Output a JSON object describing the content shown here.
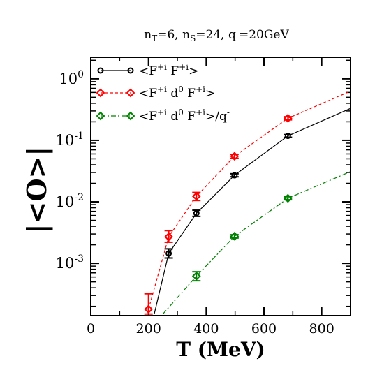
{
  "chart_data": {
    "type": "line",
    "title": "n_T=6, n_S=24, q̄=20GeV",
    "title_parts": {
      "nT_base": "n",
      "nT_sub": "T",
      "nT_val": "=6, ",
      "nS_base": "n",
      "nS_sub": "S",
      "nS_val": "=24, ",
      "q_base": "q",
      "q_sup": "-",
      "q_val": "=20GeV"
    },
    "xlabel": "T (MeV)",
    "ylabel": "|<O>|",
    "xlim": [
      0,
      900
    ],
    "ylim_log10": [
      -3.85,
      0.35
    ],
    "y_scale": "log",
    "x_ticks": [
      {
        "v": 0,
        "label": "0"
      },
      {
        "v": 200,
        "label": "200"
      },
      {
        "v": 400,
        "label": "400"
      },
      {
        "v": 600,
        "label": "600"
      },
      {
        "v": 800,
        "label": "800"
      }
    ],
    "y_ticks": [
      {
        "exp": -3,
        "base": "10",
        "sup": "-3"
      },
      {
        "exp": -2,
        "base": "10",
        "sup": "-2"
      },
      {
        "exp": -1,
        "base": "10",
        "sup": "-1"
      },
      {
        "exp": 0,
        "base": "10",
        "sup": "0"
      }
    ],
    "legend_placement": "top-left",
    "series": [
      {
        "key": "s1",
        "legend": {
          "a": "<F",
          "a_sup": "+i",
          "b": " F",
          "b_sup": "+i",
          "c": ">"
        },
        "color": "#000000",
        "dash": "",
        "marker": "circle",
        "points": [
          {
            "x": 270,
            "y": 0.00145,
            "err_lo": 0.00122,
            "err_hi": 0.00172
          },
          {
            "x": 366,
            "y": 0.0065,
            "err_lo": 0.0058,
            "err_hi": 0.0073
          },
          {
            "x": 498,
            "y": 0.027,
            "err_lo": 0.0255,
            "err_hi": 0.0286
          },
          {
            "x": 683,
            "y": 0.118,
            "err_lo": 0.112,
            "err_hi": 0.124
          }
        ],
        "line": [
          [
            220,
            0.00015
          ],
          [
            270,
            0.00145
          ],
          [
            366,
            0.0065
          ],
          [
            498,
            0.027
          ],
          [
            683,
            0.118
          ],
          [
            900,
            0.33
          ]
        ]
      },
      {
        "key": "s2",
        "legend": {
          "a": "<F",
          "a_sup": "+i",
          "b": " d",
          "b_sup": "0",
          "c": " F",
          "c_sup": "+i",
          "d": ">"
        },
        "color": "#ff0000",
        "dash": "4,3",
        "marker": "diamond",
        "points": [
          {
            "x": 200,
            "y": 0.00018,
            "err_lo": 0.00015,
            "err_hi": 0.00032
          },
          {
            "x": 270,
            "y": 0.0027,
            "err_lo": 0.0022,
            "err_hi": 0.0034
          },
          {
            "x": 366,
            "y": 0.0123,
            "err_lo": 0.0105,
            "err_hi": 0.0142
          },
          {
            "x": 498,
            "y": 0.055,
            "err_lo": 0.051,
            "err_hi": 0.059
          },
          {
            "x": 683,
            "y": 0.228,
            "err_lo": 0.215,
            "err_hi": 0.242
          }
        ],
        "line": [
          [
            200,
            0.00018
          ],
          [
            270,
            0.0027
          ],
          [
            366,
            0.0123
          ],
          [
            498,
            0.055
          ],
          [
            683,
            0.228
          ],
          [
            900,
            0.63
          ]
        ]
      },
      {
        "key": "s3",
        "legend": {
          "a": "<F",
          "a_sup": "+i",
          "b": " d",
          "b_sup": "0",
          "c": " F",
          "c_sup": "+i",
          "d": ">/q",
          "d_sup": "-"
        },
        "color": "#008000",
        "dash": "7,3,2,3",
        "marker": "diamond",
        "points": [
          {
            "x": 366,
            "y": 0.00062,
            "err_lo": 0.00052,
            "err_hi": 0.00073
          },
          {
            "x": 498,
            "y": 0.00275,
            "err_lo": 0.00258,
            "err_hi": 0.00292
          },
          {
            "x": 683,
            "y": 0.0114,
            "err_lo": 0.0108,
            "err_hi": 0.0121
          }
        ],
        "line": [
          [
            250,
            0.00015
          ],
          [
            366,
            0.00062
          ],
          [
            498,
            0.00275
          ],
          [
            683,
            0.0114
          ],
          [
            900,
            0.031
          ]
        ]
      }
    ]
  }
}
